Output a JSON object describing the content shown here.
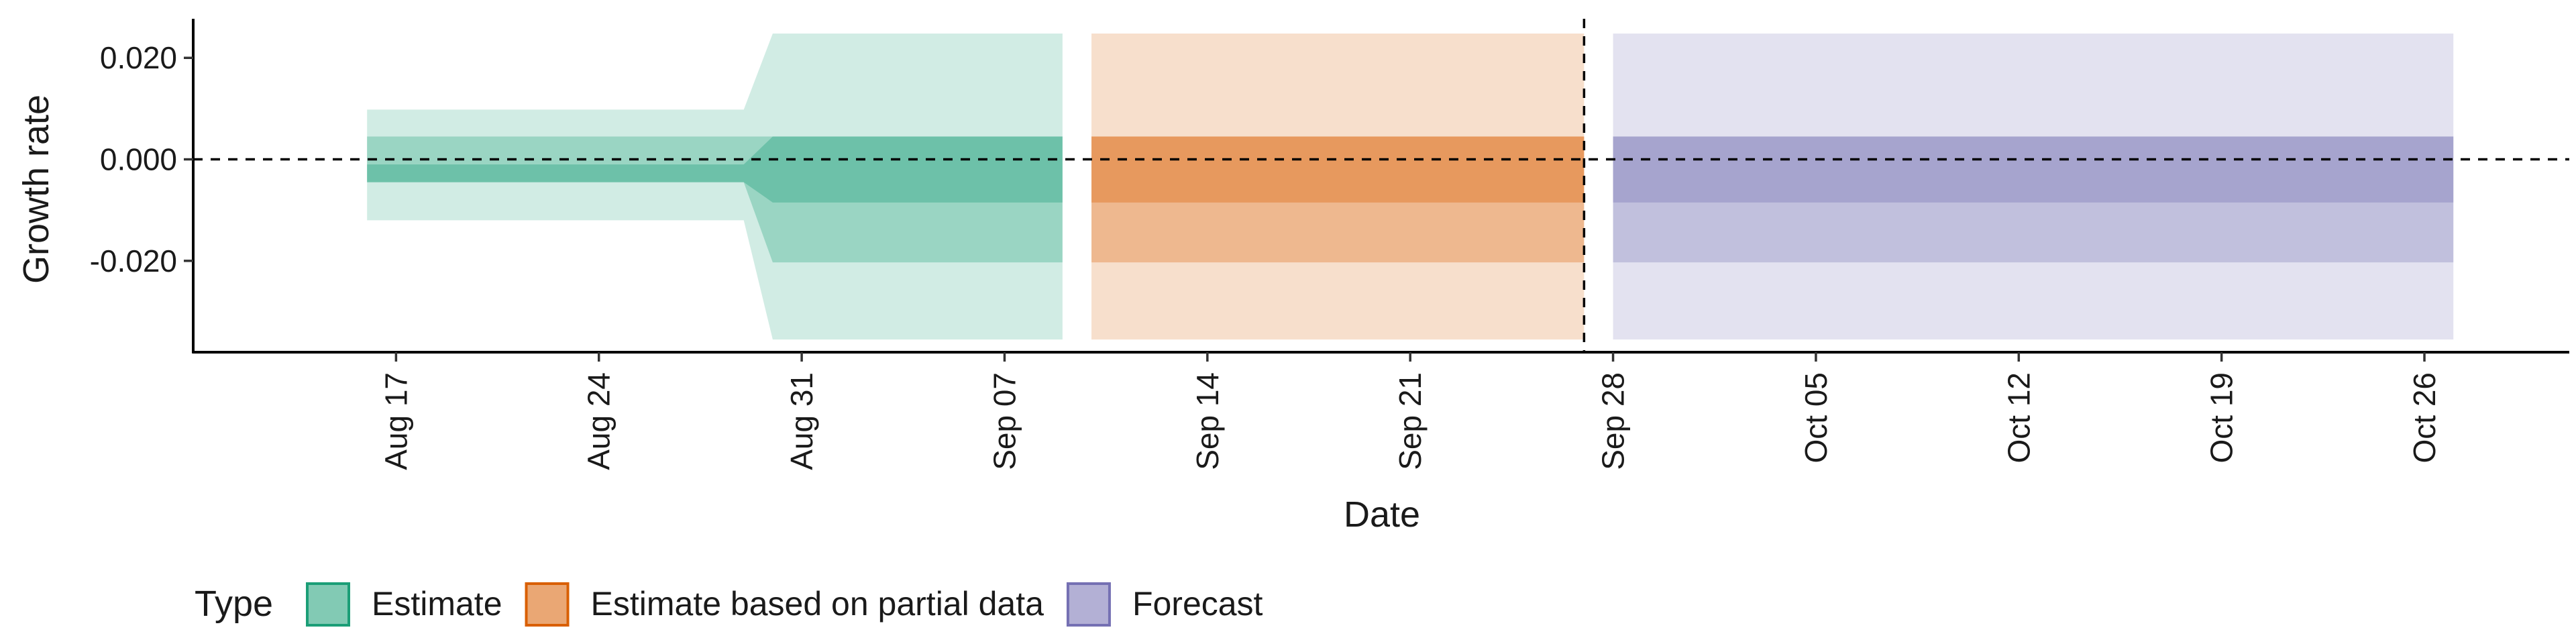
{
  "chart_data": {
    "type": "area",
    "title": "",
    "xlabel": "Date",
    "ylabel": "Growth rate",
    "x_range": [
      "2020-08-10",
      "2020-10-31"
    ],
    "ylim": [
      -0.038,
      0.0277
    ],
    "y_ticks": [
      0.02,
      0.0,
      -0.02
    ],
    "y_tick_labels": [
      "0.020",
      "0.000",
      "-0.020"
    ],
    "x_ticks": [
      "2020-08-17",
      "2020-08-24",
      "2020-08-31",
      "2020-09-07",
      "2020-09-14",
      "2020-09-21",
      "2020-09-28",
      "2020-10-05",
      "2020-10-12",
      "2020-10-19",
      "2020-10-26"
    ],
    "x_tick_labels": [
      "Aug 17",
      "Aug 24",
      "Aug 31",
      "Sep 07",
      "Sep 14",
      "Sep 21",
      "Sep 28",
      "Oct 05",
      "Oct 12",
      "Oct 19",
      "Oct 26"
    ],
    "reference_lines": {
      "horizontal_y": 0.0,
      "vertical_x": "2020-09-27"
    },
    "grid": false,
    "legend": {
      "title": "Type",
      "position": "bottom",
      "items": [
        {
          "label": "Estimate",
          "color": "#1b9e77"
        },
        {
          "label": "Estimate based on partial data",
          "color": "#d95f02"
        },
        {
          "label": "Forecast",
          "color": "#7570b3"
        }
      ]
    },
    "series": [
      {
        "name": "Estimate",
        "color": "#1b9e77",
        "points": [
          {
            "x": "2020-08-16",
            "outer": [
              -0.012,
              0.0098
            ],
            "inner": [
              -0.0045,
              0.0045
            ],
            "core": [
              -0.0045,
              -0.001
            ]
          },
          {
            "x": "2020-08-29",
            "outer": [
              -0.012,
              0.0098
            ],
            "inner": [
              -0.0045,
              0.0045
            ],
            "core": [
              -0.0045,
              -0.001
            ]
          },
          {
            "x": "2020-08-30",
            "outer": [
              -0.0355,
              0.0248
            ],
            "inner": [
              -0.0203,
              0.0045
            ],
            "core": [
              -0.0085,
              0.0045
            ]
          },
          {
            "x": "2020-09-09",
            "outer": [
              -0.0355,
              0.0248
            ],
            "inner": [
              -0.0203,
              0.0045
            ],
            "core": [
              -0.0085,
              0.0045
            ]
          }
        ]
      },
      {
        "name": "Estimate based on partial data",
        "color": "#d95f02",
        "points": [
          {
            "x": "2020-09-10",
            "outer": [
              -0.0355,
              0.0248
            ],
            "inner": [
              -0.0203,
              0.0045
            ],
            "core": [
              -0.0085,
              0.0045
            ]
          },
          {
            "x": "2020-09-27",
            "outer": [
              -0.0355,
              0.0248
            ],
            "inner": [
              -0.0203,
              0.0045
            ],
            "core": [
              -0.0085,
              0.0045
            ]
          }
        ]
      },
      {
        "name": "Forecast",
        "color": "#7570b3",
        "points": [
          {
            "x": "2020-09-28",
            "outer": [
              -0.0355,
              0.0248
            ],
            "inner": [
              -0.0203,
              0.0045
            ],
            "core": [
              -0.0085,
              0.0045
            ]
          },
          {
            "x": "2020-10-27",
            "outer": [
              -0.0355,
              0.0248
            ],
            "inner": [
              -0.0203,
              0.0045
            ],
            "core": [
              -0.0085,
              0.0045
            ]
          }
        ]
      }
    ]
  }
}
